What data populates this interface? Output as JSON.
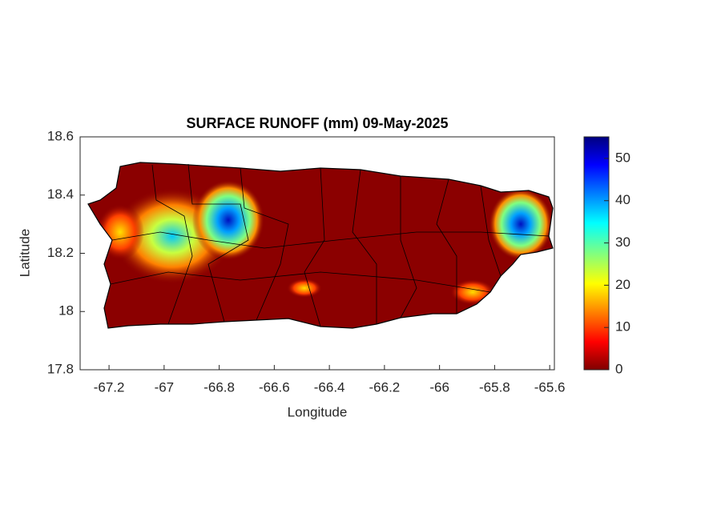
{
  "chart_data": {
    "type": "map",
    "title": "SURFACE RUNOFF (mm) 09-May-2025",
    "xlabel": "Longitude",
    "ylabel": "Latitude",
    "xlim": [
      -67.305,
      -65.583
    ],
    "ylim": [
      17.8,
      18.6
    ],
    "xticks": [
      -67.2,
      -67,
      -66.8,
      -66.6,
      -66.4,
      -66.2,
      -66,
      -65.8,
      -65.6
    ],
    "yticks": [
      17.8,
      18,
      18.2,
      18.4,
      18.6
    ],
    "clim": [
      0,
      55.1
    ],
    "cticks": [
      0,
      10,
      20,
      30,
      40,
      50
    ]
  }
}
